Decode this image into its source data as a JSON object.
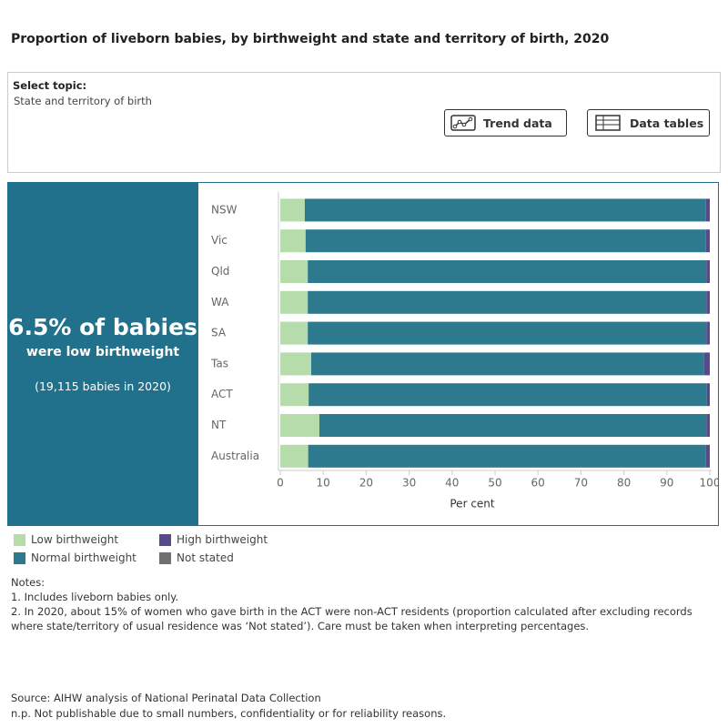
{
  "header": {
    "title": "Proportion of liveborn babies, by birthweight and state and territory of birth, 2020"
  },
  "topic": {
    "label": "Select topic:",
    "value": "State and territory of birth",
    "buttons": [
      "Trend data",
      "Data tables"
    ]
  },
  "summary": {
    "headline": "6.5% of babies",
    "subline": "were low birthweight",
    "detail": "(19,115 babies in 2020)"
  },
  "chart_data": {
    "type": "stacked-bar-horizontal",
    "categories": [
      "NSW",
      "Vic",
      "Qld",
      "WA",
      "SA",
      "Tas",
      "ACT",
      "NT",
      "Australia"
    ],
    "series": [
      {
        "name": "Low birthweight",
        "color": "#b5dcaa",
        "values": [
          5.7,
          5.9,
          6.4,
          6.4,
          6.4,
          7.2,
          6.6,
          9.1,
          6.5
        ]
      },
      {
        "name": "Normal birthweight",
        "color": "#2d7a8e",
        "values": [
          93.4,
          93.2,
          92.8,
          92.8,
          92.8,
          91.5,
          92.7,
          90.1,
          92.6
        ]
      },
      {
        "name": "High birthweight",
        "color": "#574a8c",
        "values": [
          0.9,
          0.9,
          0.8,
          0.8,
          0.8,
          1.3,
          0.7,
          0.8,
          0.9
        ]
      },
      {
        "name": "Not stated",
        "color": "#707070",
        "values": [
          0,
          0,
          0,
          0,
          0,
          0,
          0,
          0,
          0
        ]
      }
    ],
    "xlabel": "Per cent",
    "xlim": [
      0,
      100
    ],
    "xticks": [
      0,
      10,
      20,
      30,
      40,
      50,
      60,
      70,
      80,
      90,
      100
    ]
  },
  "notes": {
    "heading": "Notes:",
    "items": [
      "1. Includes liveborn babies only.",
      "2. In 2020, about 15% of women who gave birth in the ACT were non-ACT residents (proportion calculated after excluding records where state/territory of usual residence was ‘Not stated’). Care must be taken when interpreting percentages."
    ]
  },
  "footer": {
    "source": "Source: AIHW analysis of National Perinatal Data Collection",
    "np": "n.p. Not publishable due to small numbers, confidentiality or for reliability reasons."
  }
}
